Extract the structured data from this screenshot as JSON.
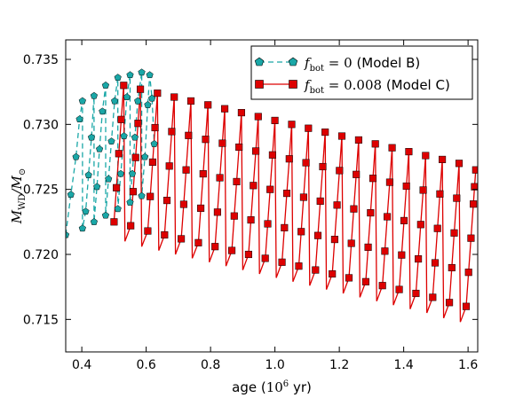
{
  "chart_data": {
    "type": "line",
    "title": "",
    "xlabel_prefix": "age (",
    "xlabel_unit": "10",
    "xlabel_exp": "6",
    "xlabel_suffix": " yr)",
    "ylabel_main": "M",
    "ylabel_sub": "WD",
    "ylabel_den": "/M",
    "ylabel_den_sub": "⊙",
    "xlim": [
      0.35,
      1.63
    ],
    "ylim": [
      0.7125,
      0.7365
    ],
    "xticks": [
      0.4,
      0.6,
      0.8,
      1.0,
      1.2,
      1.4,
      1.6
    ],
    "xtick_labels": [
      "0.4",
      "0.6",
      "0.8",
      "1.0",
      "1.2",
      "1.4",
      "1.6"
    ],
    "yticks": [
      0.715,
      0.72,
      0.725,
      0.73,
      0.735
    ],
    "ytick_labels": [
      "0.715",
      "0.720",
      "0.725",
      "0.730",
      "0.735"
    ],
    "grid": false,
    "legend_position": "top-right",
    "series": [
      {
        "name_lhs": "f",
        "name_sub": "bot",
        "name_rhs": " = 0",
        "name_paren": " (Model B)",
        "color": "#1aa7a7",
        "marker": "pentagon",
        "linestyle": "dashed",
        "points": [
          [
            0.35,
            0.7215
          ],
          [
            0.366,
            0.7246
          ],
          [
            0.382,
            0.7275
          ],
          [
            0.393,
            0.7304
          ],
          [
            0.402,
            0.7318
          ],
          [
            0.402,
            0.722
          ],
          [
            0.412,
            0.7233
          ],
          [
            0.421,
            0.7261
          ],
          [
            0.43,
            0.729
          ],
          [
            0.438,
            0.7322
          ],
          [
            0.438,
            0.7225
          ],
          [
            0.447,
            0.7252
          ],
          [
            0.455,
            0.7281
          ],
          [
            0.464,
            0.731
          ],
          [
            0.474,
            0.733
          ],
          [
            0.474,
            0.723
          ],
          [
            0.483,
            0.7258
          ],
          [
            0.492,
            0.7287
          ],
          [
            0.502,
            0.7318
          ],
          [
            0.512,
            0.7336
          ],
          [
            0.512,
            0.7235
          ],
          [
            0.521,
            0.7262
          ],
          [
            0.531,
            0.7291
          ],
          [
            0.54,
            0.7321
          ],
          [
            0.55,
            0.7338
          ],
          [
            0.55,
            0.724
          ],
          [
            0.557,
            0.7262
          ],
          [
            0.565,
            0.729
          ],
          [
            0.574,
            0.7318
          ],
          [
            0.586,
            0.734
          ],
          [
            0.586,
            0.7245
          ],
          [
            0.596,
            0.7275
          ],
          [
            0.605,
            0.7315
          ],
          [
            0.611,
            0.7338
          ],
          [
            0.618,
            0.732
          ],
          [
            0.625,
            0.7285
          ]
        ]
      },
      {
        "name_lhs": "f",
        "name_sub": "bot",
        "name_rhs": " = 0.008",
        "name_paren": " (Model C)",
        "color": "#dd0000",
        "marker": "square",
        "linestyle": "solid",
        "cycles": [
          [
            0.5,
            0.7225,
            0.733
          ],
          [
            0.552,
            0.7222,
            0.7327
          ],
          [
            0.605,
            0.7218,
            0.7324
          ],
          [
            0.657,
            0.7215,
            0.7321
          ],
          [
            0.709,
            0.7212,
            0.7318
          ],
          [
            0.762,
            0.7209,
            0.7315
          ],
          [
            0.814,
            0.7206,
            0.7312
          ],
          [
            0.866,
            0.7203,
            0.7309
          ],
          [
            0.918,
            0.72,
            0.7306
          ],
          [
            0.97,
            0.7197,
            0.7303
          ],
          [
            1.022,
            0.7194,
            0.73
          ],
          [
            1.074,
            0.7191,
            0.7297
          ],
          [
            1.126,
            0.7188,
            0.7294
          ],
          [
            1.178,
            0.7185,
            0.7291
          ],
          [
            1.23,
            0.7182,
            0.7288
          ],
          [
            1.282,
            0.7179,
            0.7285
          ],
          [
            1.334,
            0.7176,
            0.7282
          ],
          [
            1.386,
            0.7173,
            0.7279
          ],
          [
            1.438,
            0.717,
            0.7276
          ],
          [
            1.49,
            0.7167,
            0.7273
          ],
          [
            1.542,
            0.7163,
            0.727
          ],
          [
            1.594,
            0.716,
            0.7265
          ]
        ],
        "end_point": [
          1.62,
          0.7252
        ]
      }
    ]
  }
}
